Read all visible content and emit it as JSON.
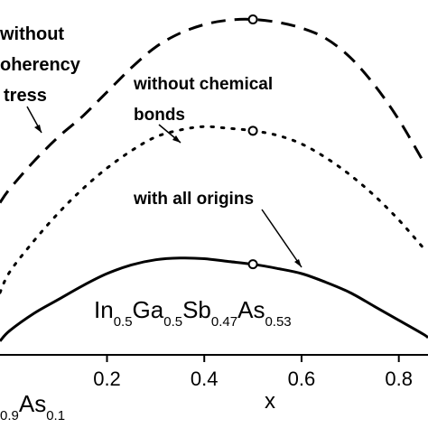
{
  "chart_data": {
    "type": "line",
    "xlabel": "x",
    "xlim": [
      -0.02,
      0.86
    ],
    "ylim": [
      0,
      1
    ],
    "x_ticks": [
      "0.2",
      "0.4",
      "0.6",
      "0.8"
    ],
    "x_tick_values": [
      0.2,
      0.4,
      0.6,
      0.8
    ],
    "grid": false,
    "series": [
      {
        "name": "without coherency stress",
        "style": "dashed",
        "x": [
          -0.02,
          0.0,
          0.05,
          0.1,
          0.15,
          0.2,
          0.25,
          0.3,
          0.35,
          0.4,
          0.45,
          0.5,
          0.55,
          0.6,
          0.65,
          0.7,
          0.75,
          0.8,
          0.85
        ],
        "y": [
          0.44,
          0.48,
          0.56,
          0.63,
          0.69,
          0.76,
          0.83,
          0.89,
          0.93,
          0.955,
          0.968,
          0.97,
          0.962,
          0.945,
          0.915,
          0.86,
          0.78,
          0.68,
          0.56
        ]
      },
      {
        "name": "without chemical bonds",
        "style": "dotted",
        "x": [
          -0.02,
          0.0,
          0.05,
          0.1,
          0.15,
          0.2,
          0.25,
          0.3,
          0.35,
          0.4,
          0.45,
          0.5,
          0.55,
          0.6,
          0.65,
          0.7,
          0.75,
          0.8,
          0.85
        ],
        "y": [
          0.18,
          0.24,
          0.33,
          0.41,
          0.48,
          0.54,
          0.59,
          0.63,
          0.65,
          0.66,
          0.655,
          0.648,
          0.635,
          0.61,
          0.57,
          0.52,
          0.46,
          0.39,
          0.31
        ]
      },
      {
        "name": "with all origins",
        "style": "solid",
        "x": [
          -0.02,
          0.0,
          0.05,
          0.1,
          0.15,
          0.2,
          0.25,
          0.3,
          0.35,
          0.4,
          0.45,
          0.5,
          0.55,
          0.6,
          0.65,
          0.7,
          0.75,
          0.8,
          0.85,
          0.86
        ],
        "y": [
          0.04,
          0.07,
          0.12,
          0.16,
          0.2,
          0.235,
          0.26,
          0.275,
          0.28,
          0.278,
          0.27,
          0.262,
          0.25,
          0.235,
          0.21,
          0.18,
          0.14,
          0.1,
          0.06,
          0.05
        ]
      }
    ],
    "markers": [
      {
        "series": "without coherency stress",
        "x": 0.5,
        "y": 0.97
      },
      {
        "series": "without chemical bonds",
        "x": 0.5,
        "y": 0.648
      },
      {
        "series": "with all origins",
        "x": 0.5,
        "y": 0.262
      }
    ],
    "annotations": {
      "coherency": [
        "without",
        "oherency",
        "tress"
      ],
      "chemical": [
        "without chemical",
        "bonds"
      ],
      "origins": [
        "with all origins"
      ]
    },
    "formula": {
      "parts": [
        {
          "t": "In",
          "sub": false
        },
        {
          "t": "0.5",
          "sub": true
        },
        {
          "t": "Ga",
          "sub": false
        },
        {
          "t": "0.5",
          "sub": true
        },
        {
          "t": "Sb",
          "sub": false
        },
        {
          "t": "0.47",
          "sub": true
        },
        {
          "t": "As",
          "sub": false
        },
        {
          "t": "0.53",
          "sub": true
        }
      ]
    },
    "bottom_left_formula": {
      "parts": [
        {
          "t": "0.9",
          "sub": true
        },
        {
          "t": "As",
          "sub": false
        },
        {
          "t": "0.1",
          "sub": true
        }
      ]
    }
  }
}
